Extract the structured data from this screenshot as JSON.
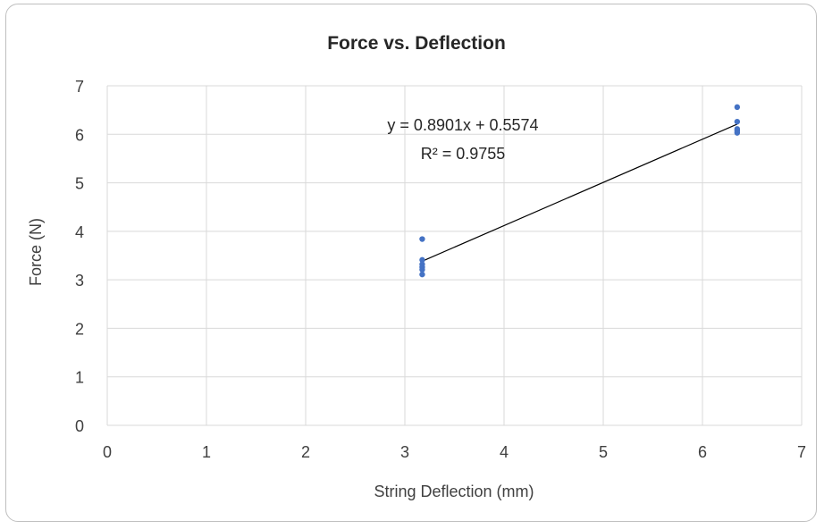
{
  "chart_data": {
    "type": "scatter",
    "title": "Force vs. Deflection",
    "xlabel": "String Deflection (mm)",
    "ylabel": "Force (N)",
    "xlim": [
      0,
      7
    ],
    "ylim": [
      0,
      7
    ],
    "xticks": [
      "0",
      "1",
      "2",
      "3",
      "4",
      "5",
      "6",
      "7"
    ],
    "yticks": [
      "0",
      "1",
      "2",
      "3",
      "4",
      "5",
      "6",
      "7"
    ],
    "grid": true,
    "legend": "none",
    "marker_color": "#4472c4",
    "series": [
      {
        "points": [
          [
            3.175,
            3.84
          ],
          [
            3.175,
            3.41
          ],
          [
            3.175,
            3.32
          ],
          [
            3.175,
            3.26
          ],
          [
            3.175,
            3.21
          ],
          [
            3.175,
            3.11
          ],
          [
            6.35,
            6.56
          ],
          [
            6.35,
            6.26
          ],
          [
            6.35,
            6.11
          ],
          [
            6.35,
            6.07
          ],
          [
            6.35,
            6.03
          ]
        ]
      }
    ],
    "trendline": {
      "slope": 0.8901,
      "intercept": 0.5574,
      "x_range": [
        3.175,
        6.35
      ],
      "equation": "y = 0.8901x + 0.5574",
      "r_squared": "R² = 0.9755"
    }
  }
}
